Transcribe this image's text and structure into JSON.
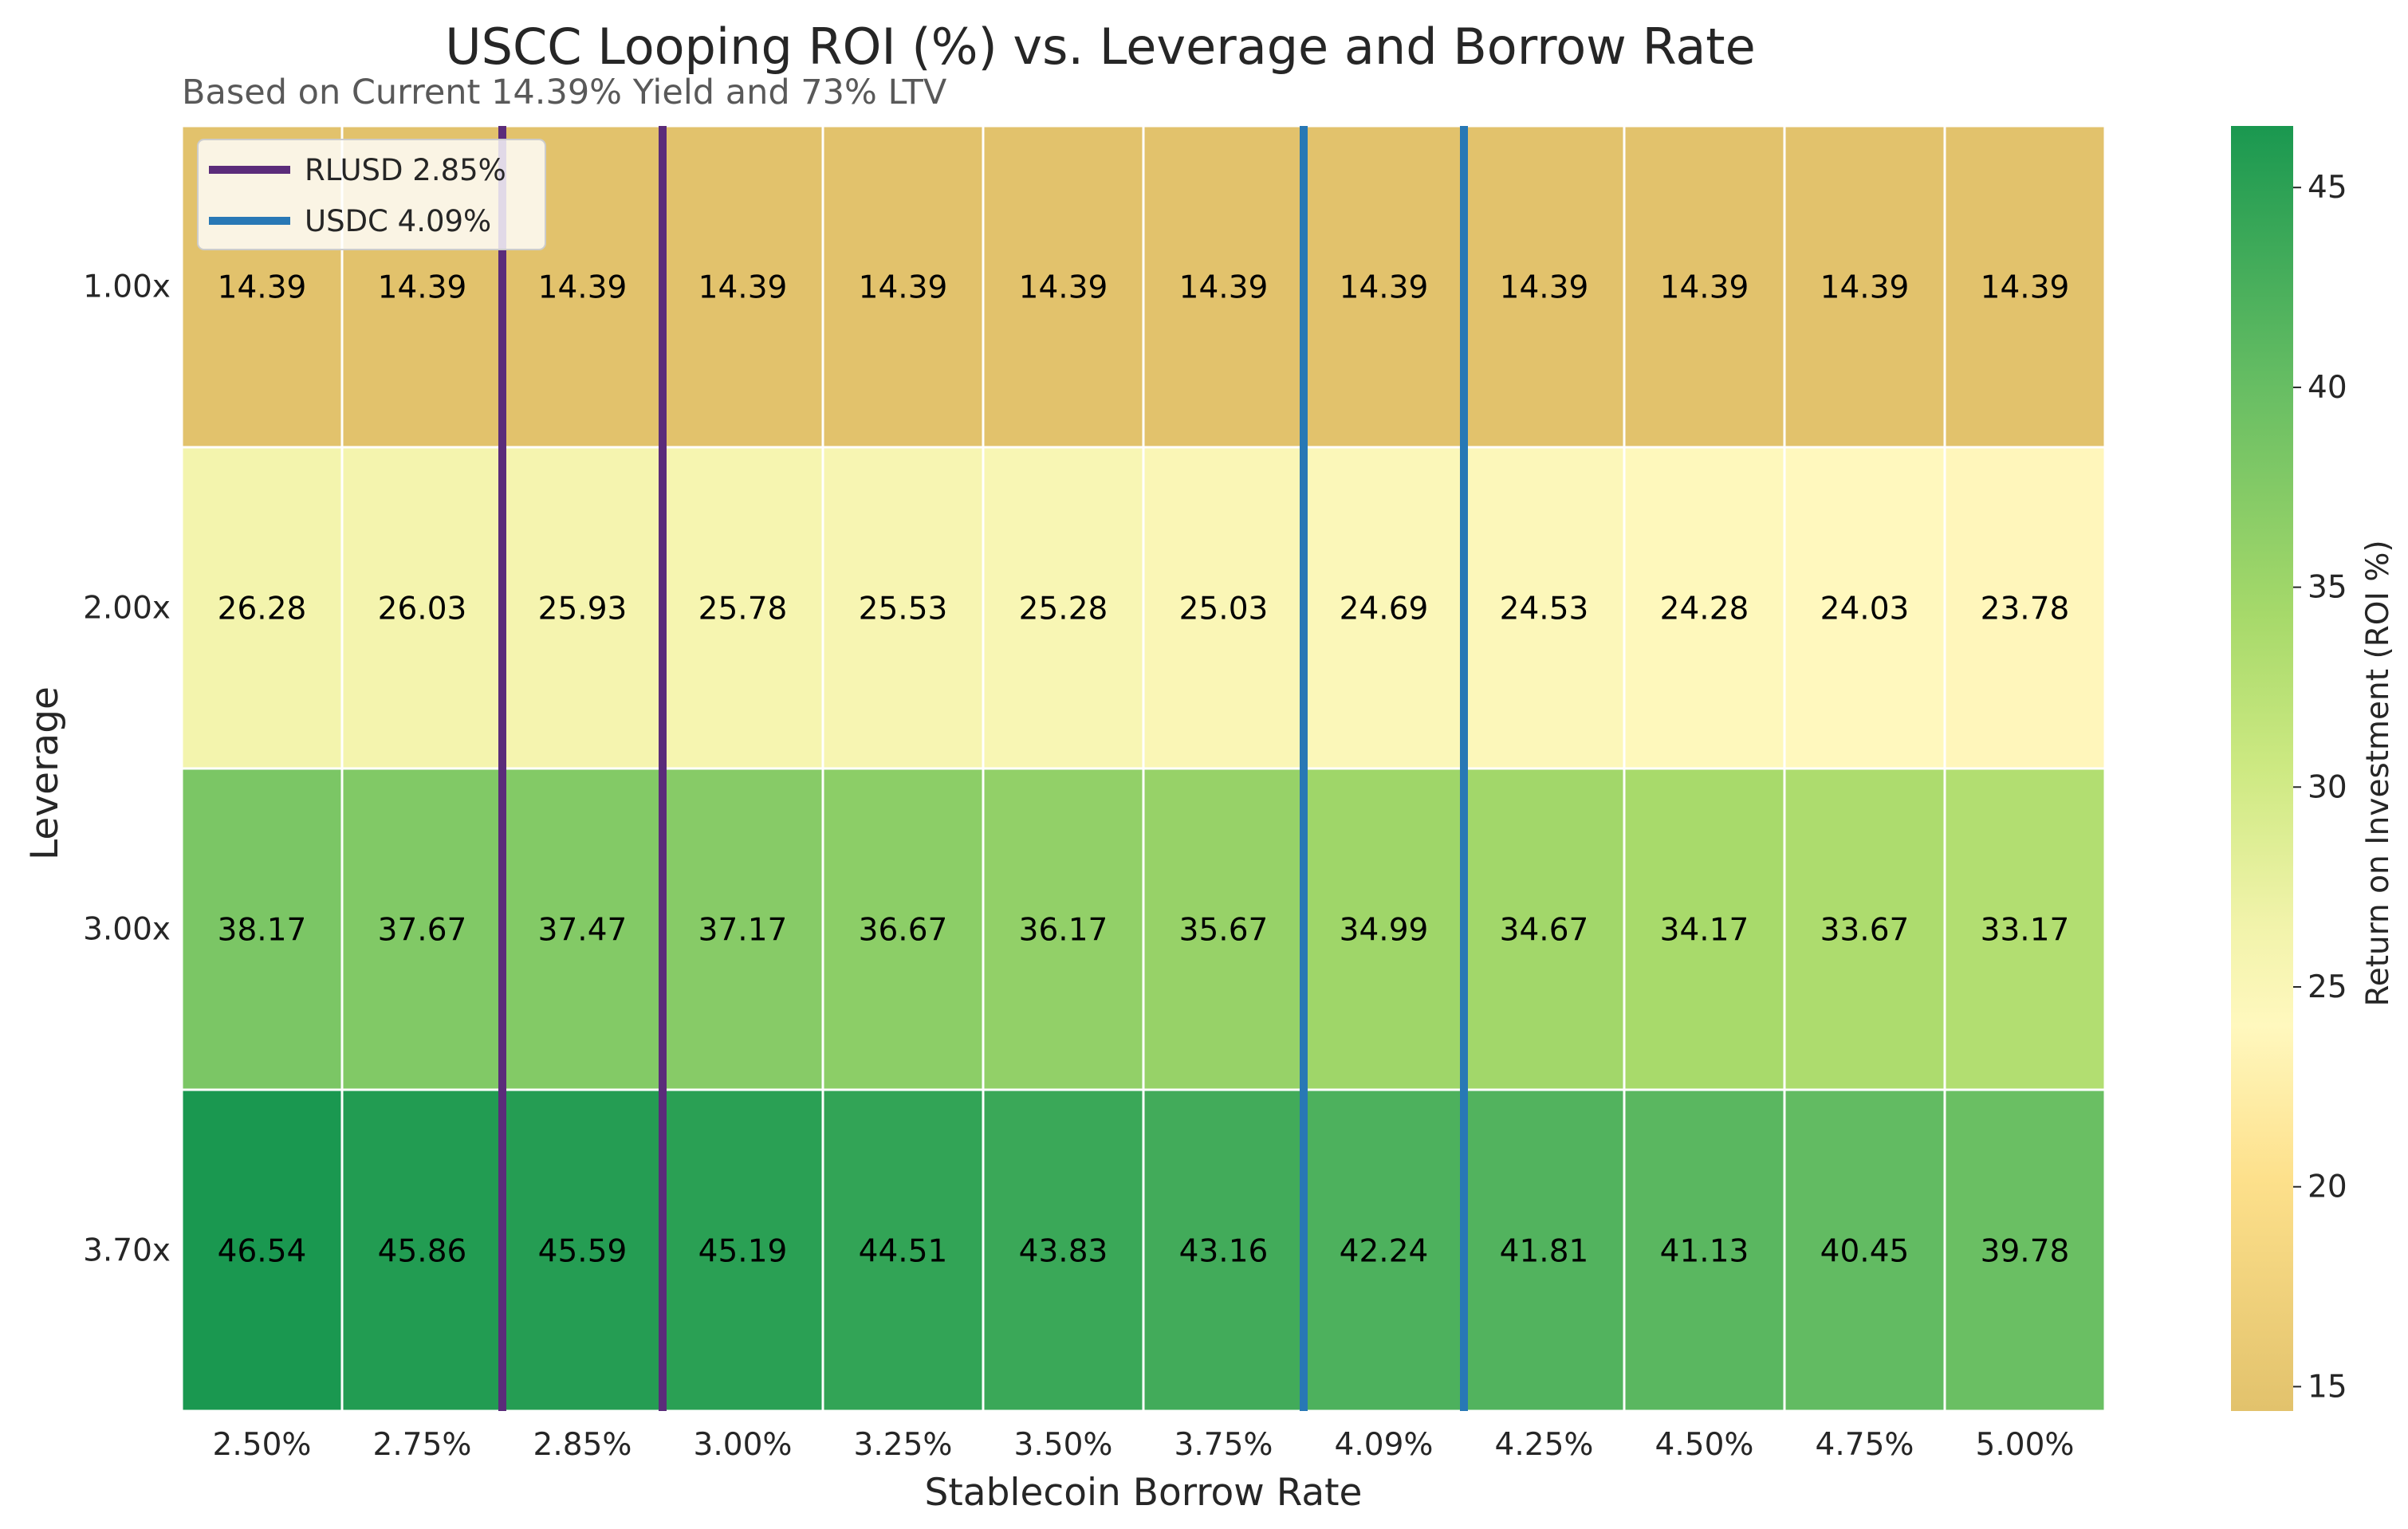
{
  "chart_data": {
    "type": "heatmap",
    "title": "USCC Looping ROI (%) vs. Leverage and Borrow Rate",
    "subtitle": "Based on Current 14.39% Yield and 73% LTV",
    "xlabel": "Stablecoin Borrow Rate",
    "ylabel": "Leverage",
    "x_categories": [
      "2.50%",
      "2.75%",
      "2.85%",
      "3.00%",
      "3.25%",
      "3.50%",
      "3.75%",
      "4.09%",
      "4.25%",
      "4.50%",
      "4.75%",
      "5.00%"
    ],
    "y_categories": [
      "1.00x",
      "2.00x",
      "3.00x",
      "3.70x"
    ],
    "values": [
      [
        14.39,
        14.39,
        14.39,
        14.39,
        14.39,
        14.39,
        14.39,
        14.39,
        14.39,
        14.39,
        14.39,
        14.39
      ],
      [
        26.28,
        26.03,
        25.93,
        25.78,
        25.53,
        25.28,
        25.03,
        24.69,
        24.53,
        24.28,
        24.03,
        23.78
      ],
      [
        38.17,
        37.67,
        37.47,
        37.17,
        36.67,
        36.17,
        35.67,
        34.99,
        34.67,
        34.17,
        33.67,
        33.17
      ],
      [
        46.54,
        45.86,
        45.59,
        45.19,
        44.51,
        43.83,
        43.16,
        42.24,
        41.81,
        41.13,
        40.45,
        39.78
      ]
    ],
    "value_labels": [
      [
        "14.39",
        "14.39",
        "14.39",
        "14.39",
        "14.39",
        "14.39",
        "14.39",
        "14.39",
        "14.39",
        "14.39",
        "14.39",
        "14.39"
      ],
      [
        "26.28",
        "26.03",
        "25.93",
        "25.78",
        "25.53",
        "25.28",
        "25.03",
        "24.69",
        "24.53",
        "24.28",
        "24.03",
        "23.78"
      ],
      [
        "38.17",
        "37.67",
        "37.47",
        "37.17",
        "36.67",
        "36.17",
        "35.67",
        "34.99",
        "34.67",
        "34.17",
        "33.67",
        "33.17"
      ],
      [
        "46.54",
        "45.86",
        "45.59",
        "45.19",
        "44.51",
        "43.83",
        "43.16",
        "42.24",
        "41.81",
        "41.13",
        "40.45",
        "39.78"
      ]
    ],
    "colorbar": {
      "label": "Return on Investment (ROI %)",
      "ticks": [
        15,
        20,
        25,
        30,
        35,
        40,
        45
      ],
      "range": [
        14.39,
        46.54
      ],
      "colormap": "RdYlGn-like (tan to green)"
    },
    "reference_lines": [
      {
        "name": "RLUSD 2.85%",
        "color": "#5b2c7a",
        "category": "2.85%"
      },
      {
        "name": "USDC 4.09%",
        "color": "#2878b5",
        "category": "4.09%"
      }
    ],
    "legend_position": "upper-left",
    "grid": false
  }
}
